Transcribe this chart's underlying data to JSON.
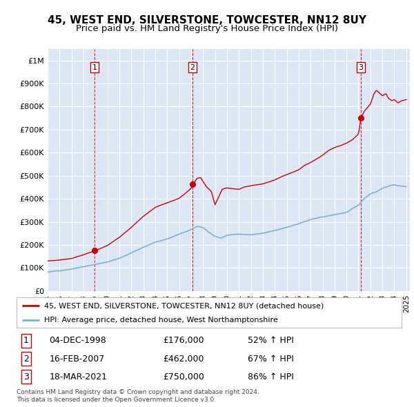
{
  "title": "45, WEST END, SILVERSTONE, TOWCESTER, NN12 8UY",
  "subtitle": "Price paid vs. HM Land Registry's House Price Index (HPI)",
  "title_fontsize": 11,
  "subtitle_fontsize": 9.5,
  "background_color": "#ffffff",
  "plot_bg_color": "#dce6f5",
  "ylim": [
    0,
    1050000
  ],
  "yticks": [
    0,
    100000,
    200000,
    300000,
    400000,
    500000,
    600000,
    700000,
    800000,
    900000,
    1000000
  ],
  "ytick_labels": [
    "£0",
    "£100K",
    "£200K",
    "£300K",
    "£400K",
    "£500K",
    "£600K",
    "£700K",
    "£800K",
    "£900K",
    "£1M"
  ],
  "sale_dates": [
    1998.92,
    2007.12,
    2021.21
  ],
  "sale_prices": [
    176000,
    462000,
    750000
  ],
  "sale_labels": [
    "1",
    "2",
    "3"
  ],
  "legend_line1": "45, WEST END, SILVERSTONE, TOWCESTER, NN12 8UY (detached house)",
  "legend_line2": "HPI: Average price, detached house, West Northamptonshire",
  "footnote1": "Contains HM Land Registry data © Crown copyright and database right 2024.",
  "footnote2": "This data is licensed under the Open Government Licence v3.0.",
  "red_color": "#cc0000",
  "blue_color": "#7eb0d4",
  "dot_color": "#cc0000",
  "table_rows": [
    [
      "1",
      "04-DEC-1998",
      "£176,000",
      "52% ↑ HPI"
    ],
    [
      "2",
      "16-FEB-2007",
      "£462,000",
      "67% ↑ HPI"
    ],
    [
      "3",
      "18-MAR-2021",
      "£750,000",
      "86% ↑ HPI"
    ]
  ]
}
